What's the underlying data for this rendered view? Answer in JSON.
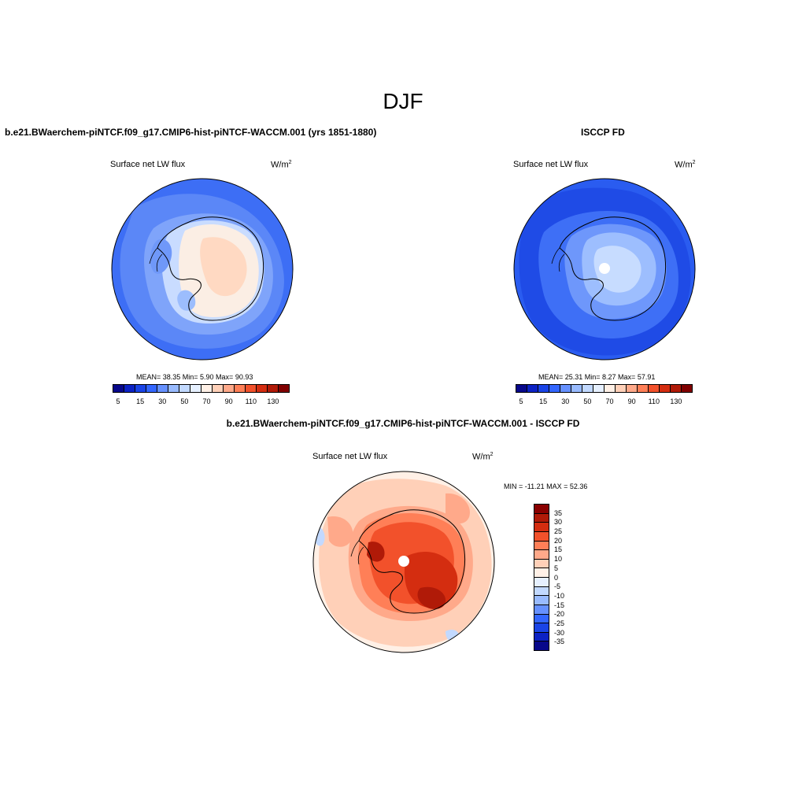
{
  "figure": {
    "title": "DJF"
  },
  "panels": [
    {
      "title": "b.e21.BWaerchem-piNTCF.f09_g17.CMIP6-hist-piNTCF-WACCM.001 (yrs 1851-1880)",
      "left_label": "Surface net LW flux",
      "units": "W/m",
      "units_exp": "2",
      "stats": "MEAN=  38.35  Min=   5.90  Max=  90.93",
      "stat_values": {
        "mean": 38.35,
        "min": 5.9,
        "max": 90.93
      }
    },
    {
      "title": "ISCCP FD",
      "left_label": "Surface net LW flux",
      "units": "W/m",
      "units_exp": "2",
      "stats": "MEAN=  25.31  Min=   8.27  Max=  57.91",
      "stat_values": {
        "mean": 25.31,
        "min": 8.27,
        "max": 57.91
      }
    },
    {
      "title": "b.e21.BWaerchem-piNTCF.f09_g17.CMIP6-hist-piNTCF-WACCM.001 - ISCCP FD",
      "left_label": "Surface net LW flux",
      "units": "W/m",
      "units_exp": "2",
      "stats": "MIN = -11.21 MAX =  52.36",
      "stat_values": {
        "min": -11.21,
        "max": 52.36
      }
    }
  ],
  "colorbars": {
    "absolute": {
      "orientation": "horizontal",
      "colors": [
        "#08088a",
        "#0c22c4",
        "#1a44e6",
        "#3366ff",
        "#6691ff",
        "#99bbff",
        "#c2d9ff",
        "#e6f0ff",
        "#fff0e6",
        "#ffd0b8",
        "#ffa98a",
        "#ff7f57",
        "#f2512b",
        "#d42d10",
        "#b01a08",
        "#800000"
      ],
      "tick_labels": [
        "5",
        "15",
        "30",
        "50",
        "70",
        "90",
        "110",
        "130"
      ]
    },
    "difference": {
      "orientation": "vertical",
      "colors_top_to_bottom": [
        "#8a0000",
        "#b01a08",
        "#d42d10",
        "#f2512b",
        "#ff7f57",
        "#ffa98a",
        "#ffd0b8",
        "#fff0e6",
        "#e6f0ff",
        "#c2d9ff",
        "#99bbff",
        "#6691ff",
        "#3366ff",
        "#1a44e6",
        "#0c22c4",
        "#08088a"
      ],
      "tick_labels": [
        "35",
        "30",
        "25",
        "20",
        "15",
        "10",
        "5",
        "0",
        "-5",
        "-10",
        "-15",
        "-20",
        "-25",
        "-30",
        "-35"
      ]
    }
  }
}
